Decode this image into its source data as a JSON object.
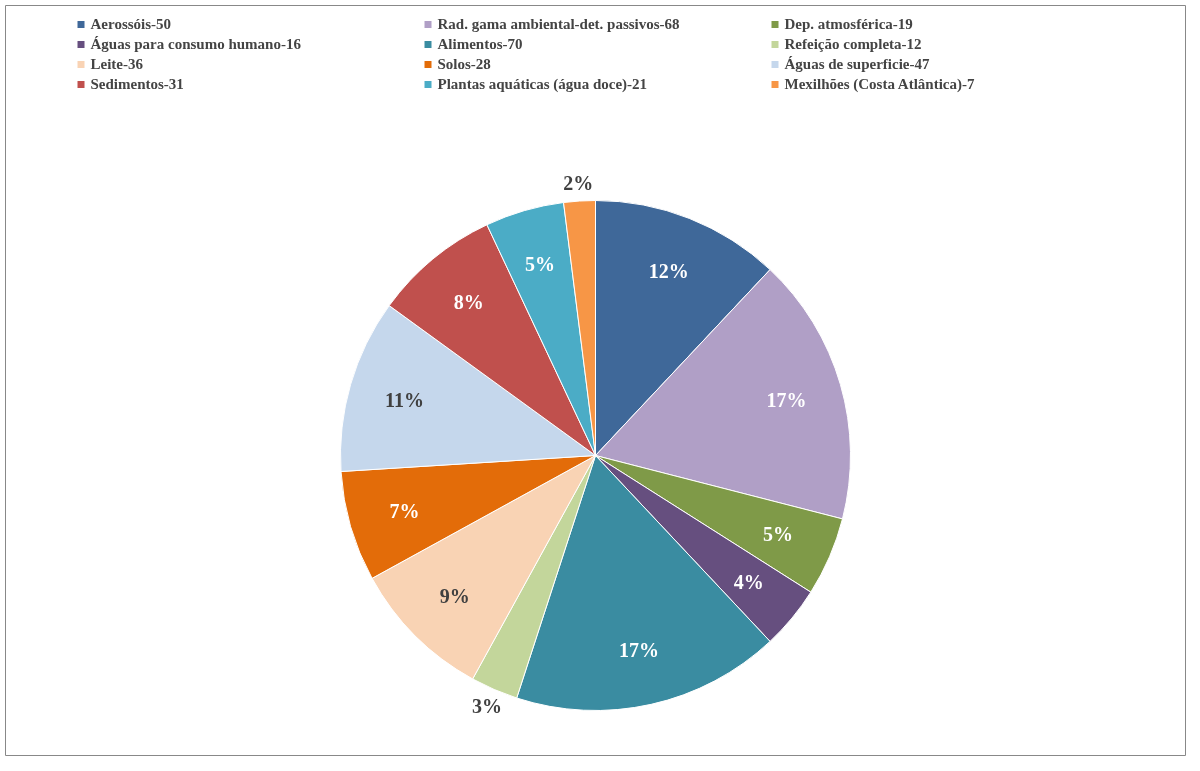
{
  "chart_data": {
    "type": "pie",
    "categories": [
      "Aerossóis-50",
      "Rad. gama ambiental-det. passivos-68",
      "Dep. atmosférica-19",
      "Águas para consumo humano-16",
      "Alimentos-70",
      "Refeição completa-12",
      "Leite-36",
      "Solos-28",
      "Águas de superficie-47",
      "Sedimentos-31",
      "Plantas aquáticas (água doce)-21",
      "Mexilhões (Costa Atlântica)-7"
    ],
    "values": [
      12,
      17,
      5,
      4,
      17,
      3,
      9,
      7,
      11,
      8,
      5,
      2
    ],
    "value_labels": [
      "12%",
      "17%",
      "5%",
      "4%",
      "17%",
      "3%",
      "9%",
      "7%",
      "11%",
      "8%",
      "5%",
      "2%"
    ],
    "colors": [
      "#3f6899",
      "#b09fc6",
      "#7f9a48",
      "#664f7f",
      "#3a8ca1",
      "#c3d69b",
      "#f9d3b4",
      "#e36c09",
      "#c5d7ec",
      "#c0504d",
      "#4bacc6",
      "#f79646"
    ],
    "legend": "top"
  }
}
